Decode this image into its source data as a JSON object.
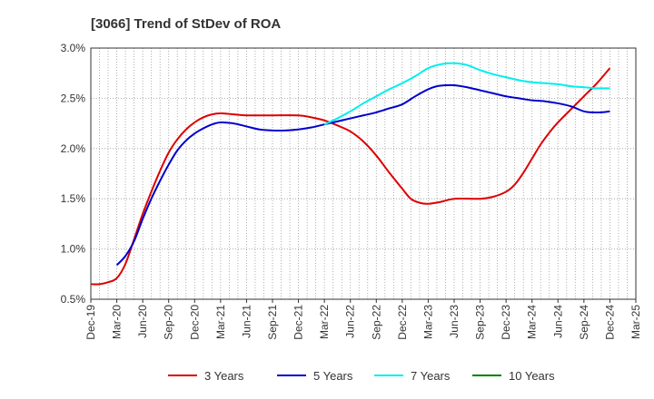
{
  "chart_data": {
    "type": "line",
    "title": "[3066]  Trend of StDev of ROA",
    "xlabel": "",
    "ylabel": "",
    "x_labels": [
      "Dec-19",
      "Mar-20",
      "Jun-20",
      "Sep-20",
      "Dec-20",
      "Mar-21",
      "Jun-21",
      "Sep-21",
      "Dec-21",
      "Mar-22",
      "Jun-22",
      "Sep-22",
      "Dec-22",
      "Mar-23",
      "Jun-23",
      "Sep-23",
      "Dec-23",
      "Mar-24",
      "Jun-24",
      "Sep-24",
      "Dec-24",
      "Mar-25"
    ],
    "y_ticks": [
      "0.5%",
      "1.0%",
      "1.5%",
      "2.0%",
      "2.5%",
      "3.0%"
    ],
    "ylim": [
      0.5,
      3.0
    ],
    "grid": true,
    "legend_position": "bottom",
    "series": [
      {
        "name": "3 Years",
        "color": "#dd0000",
        "points": [
          [
            0,
            0.65
          ],
          [
            0.33,
            0.65
          ],
          [
            0.67,
            0.67
          ],
          [
            1,
            0.71
          ],
          [
            1.33,
            0.85
          ],
          [
            1.67,
            1.1
          ],
          [
            2,
            1.35
          ],
          [
            2.33,
            1.57
          ],
          [
            2.67,
            1.78
          ],
          [
            3,
            1.96
          ],
          [
            3.33,
            2.09
          ],
          [
            3.67,
            2.19
          ],
          [
            4,
            2.26
          ],
          [
            4.33,
            2.31
          ],
          [
            4.67,
            2.34
          ],
          [
            5,
            2.35
          ],
          [
            5.5,
            2.34
          ],
          [
            6,
            2.33
          ],
          [
            7,
            2.33
          ],
          [
            8,
            2.33
          ],
          [
            8.5,
            2.31
          ],
          [
            9,
            2.28
          ],
          [
            9.5,
            2.23
          ],
          [
            10,
            2.17
          ],
          [
            10.5,
            2.07
          ],
          [
            11,
            1.93
          ],
          [
            11.5,
            1.76
          ],
          [
            12,
            1.6
          ],
          [
            12.33,
            1.5
          ],
          [
            12.67,
            1.46
          ],
          [
            13,
            1.45
          ],
          [
            13.5,
            1.47
          ],
          [
            14,
            1.5
          ],
          [
            15,
            1.5
          ],
          [
            15.5,
            1.52
          ],
          [
            16,
            1.57
          ],
          [
            16.33,
            1.64
          ],
          [
            16.67,
            1.76
          ],
          [
            17,
            1.9
          ],
          [
            17.33,
            2.04
          ],
          [
            17.67,
            2.16
          ],
          [
            18,
            2.26
          ],
          [
            18.5,
            2.39
          ],
          [
            19,
            2.52
          ],
          [
            19.5,
            2.65
          ],
          [
            20,
            2.8
          ]
        ]
      },
      {
        "name": "5 Years",
        "color": "#0000cc",
        "points": [
          [
            1,
            0.84
          ],
          [
            1.33,
            0.93
          ],
          [
            1.67,
            1.08
          ],
          [
            2,
            1.3
          ],
          [
            2.33,
            1.5
          ],
          [
            2.67,
            1.68
          ],
          [
            3,
            1.84
          ],
          [
            3.33,
            1.98
          ],
          [
            3.67,
            2.08
          ],
          [
            4,
            2.15
          ],
          [
            4.33,
            2.2
          ],
          [
            4.67,
            2.24
          ],
          [
            5,
            2.26
          ],
          [
            5.5,
            2.25
          ],
          [
            6,
            2.22
          ],
          [
            6.5,
            2.19
          ],
          [
            7,
            2.18
          ],
          [
            7.5,
            2.18
          ],
          [
            8,
            2.19
          ],
          [
            8.5,
            2.21
          ],
          [
            9,
            2.24
          ],
          [
            9.5,
            2.27
          ],
          [
            10,
            2.3
          ],
          [
            10.5,
            2.33
          ],
          [
            11,
            2.36
          ],
          [
            11.5,
            2.4
          ],
          [
            12,
            2.44
          ],
          [
            12.5,
            2.52
          ],
          [
            13,
            2.59
          ],
          [
            13.33,
            2.62
          ],
          [
            13.67,
            2.63
          ],
          [
            14,
            2.63
          ],
          [
            14.5,
            2.61
          ],
          [
            15,
            2.58
          ],
          [
            15.5,
            2.55
          ],
          [
            16,
            2.52
          ],
          [
            16.5,
            2.5
          ],
          [
            17,
            2.48
          ],
          [
            17.5,
            2.47
          ],
          [
            18,
            2.45
          ],
          [
            18.5,
            2.42
          ],
          [
            19,
            2.37
          ],
          [
            19.33,
            2.36
          ],
          [
            19.67,
            2.36
          ],
          [
            20,
            2.37
          ]
        ]
      },
      {
        "name": "7 Years",
        "color": "#00eeee",
        "points": [
          [
            9,
            2.24
          ],
          [
            9.5,
            2.3
          ],
          [
            10,
            2.37
          ],
          [
            10.5,
            2.45
          ],
          [
            11,
            2.52
          ],
          [
            11.5,
            2.59
          ],
          [
            12,
            2.65
          ],
          [
            12.5,
            2.72
          ],
          [
            13,
            2.8
          ],
          [
            13.5,
            2.84
          ],
          [
            14,
            2.85
          ],
          [
            14.5,
            2.83
          ],
          [
            15,
            2.78
          ],
          [
            15.5,
            2.74
          ],
          [
            16,
            2.71
          ],
          [
            16.5,
            2.68
          ],
          [
            17,
            2.66
          ],
          [
            17.5,
            2.65
          ],
          [
            18,
            2.64
          ],
          [
            18.5,
            2.62
          ],
          [
            19,
            2.61
          ],
          [
            19.5,
            2.6
          ],
          [
            20,
            2.6
          ]
        ]
      },
      {
        "name": "10 Years",
        "color": "#008000",
        "points": []
      }
    ]
  }
}
